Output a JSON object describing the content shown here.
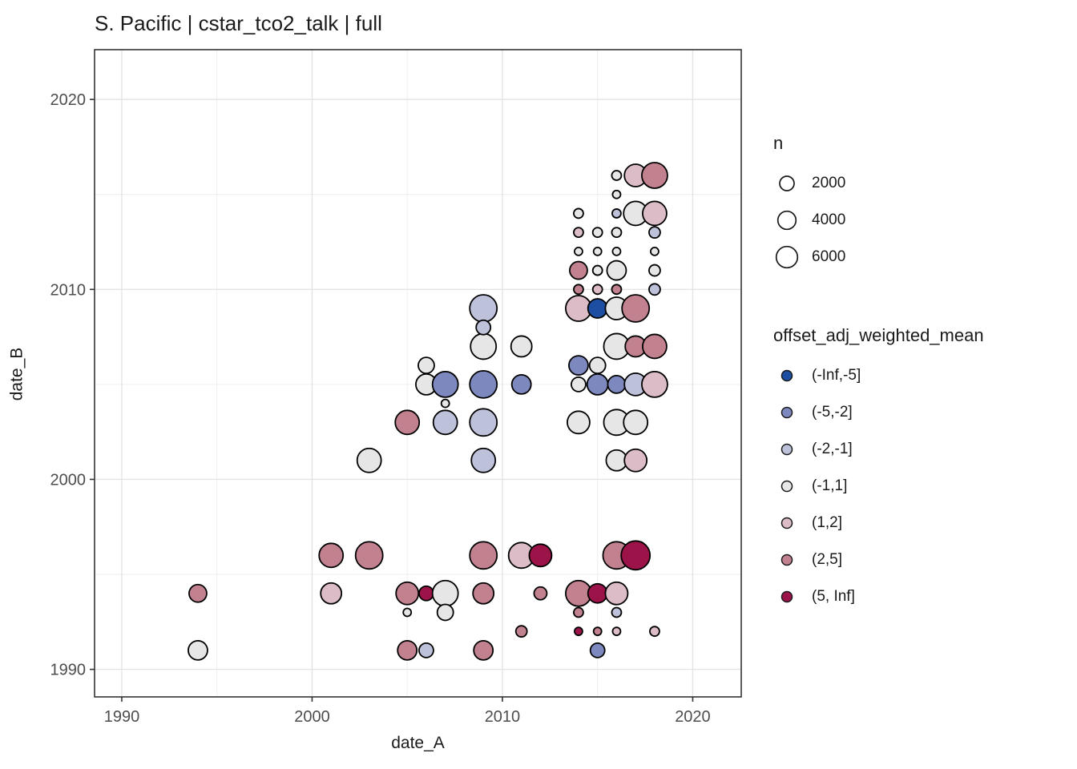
{
  "title": "S. Pacific | cstar_tco2_talk | full",
  "chart_data": {
    "type": "scatter",
    "title": "S. Pacific | cstar_tco2_talk | full",
    "xlabel": "date_A",
    "ylabel": "date_B",
    "xlim": [
      1988.57,
      2022.55
    ],
    "ylim": [
      1988.55,
      2022.62
    ],
    "x_ticks": [
      1990,
      2000,
      2010,
      2020
    ],
    "y_ticks": [
      1990,
      2000,
      2010,
      2020
    ],
    "x_minor_ticks": [
      1995,
      2005,
      2015
    ],
    "y_minor_ticks": [
      1995,
      2005,
      2015
    ],
    "grid": true,
    "legend_position": "right",
    "size_legend": {
      "title": "n",
      "entries": [
        {
          "n": "2000",
          "r": 9
        },
        {
          "n": "4000",
          "r": 11.3
        },
        {
          "n": "6000",
          "r": 13.3
        }
      ]
    },
    "color_legend": {
      "title": "offset_adj_weighted_mean",
      "entries": [
        {
          "label": "(-Inf,-5]",
          "color": "#1c4fa1"
        },
        {
          "label": "(-5,-2]",
          "color": "#7d88be"
        },
        {
          "label": "(-2,-1]",
          "color": "#bdc1da"
        },
        {
          "label": "(-1,1]",
          "color": "#e6e6e6"
        },
        {
          "label": "(1,2]",
          "color": "#dcbdc7"
        },
        {
          "label": "(2,5]",
          "color": "#c1818f"
        },
        {
          "label": "(5, Inf]",
          "color": "#9c1349"
        }
      ]
    },
    "points": [
      {
        "a": 2016,
        "b": 2016,
        "bin": "(-1,1]",
        "r": 6,
        "n": 420
      },
      {
        "a": 2017,
        "b": 2016,
        "bin": "(1,2]",
        "r": 14,
        "n": 7200
      },
      {
        "a": 2018,
        "b": 2016,
        "bin": "(2,5]",
        "r": 16,
        "n": 10200
      },
      {
        "a": 2016,
        "b": 2015,
        "bin": "(-1,1]",
        "r": 5,
        "n": 150
      },
      {
        "a": 2014,
        "b": 2014,
        "bin": "(-1,1]",
        "r": 6,
        "n": 420
      },
      {
        "a": 2016,
        "b": 2014,
        "bin": "(-2,-1]",
        "r": 5.5,
        "n": 270
      },
      {
        "a": 2017,
        "b": 2014,
        "bin": "(-1,1]",
        "r": 15,
        "n": 8700
      },
      {
        "a": 2018,
        "b": 2014,
        "bin": "(1,2]",
        "r": 15,
        "n": 8700
      },
      {
        "a": 2014,
        "b": 2013,
        "bin": "(1,2]",
        "r": 6,
        "n": 420
      },
      {
        "a": 2015,
        "b": 2013,
        "bin": "(-1,1]",
        "r": 6,
        "n": 420
      },
      {
        "a": 2016,
        "b": 2013,
        "bin": "(-1,1]",
        "r": 6,
        "n": 420
      },
      {
        "a": 2018,
        "b": 2013,
        "bin": "(-2,-1]",
        "r": 7,
        "n": 820
      },
      {
        "a": 2014,
        "b": 2012,
        "bin": "(-1,1]",
        "r": 5,
        "n": 150
      },
      {
        "a": 2015,
        "b": 2012,
        "bin": "(-1,1]",
        "r": 5,
        "n": 150
      },
      {
        "a": 2016,
        "b": 2012,
        "bin": "(-1,1]",
        "r": 5,
        "n": 150
      },
      {
        "a": 2018,
        "b": 2012,
        "bin": "(-1,1]",
        "r": 5,
        "n": 150
      },
      {
        "a": 2014,
        "b": 2011,
        "bin": "(2,5]",
        "r": 11,
        "n": 3700
      },
      {
        "a": 2015,
        "b": 2011,
        "bin": "(-1,1]",
        "r": 6,
        "n": 420
      },
      {
        "a": 2016,
        "b": 2011,
        "bin": "(-1,1]",
        "r": 12,
        "n": 4700
      },
      {
        "a": 2018,
        "b": 2011,
        "bin": "(-1,1]",
        "r": 7,
        "n": 820
      },
      {
        "a": 2014,
        "b": 2010,
        "bin": "(2,5]",
        "r": 6,
        "n": 420
      },
      {
        "a": 2015,
        "b": 2010,
        "bin": "(1,2]",
        "r": 6,
        "n": 420
      },
      {
        "a": 2016,
        "b": 2010,
        "bin": "(2,5]",
        "r": 6,
        "n": 420
      },
      {
        "a": 2018,
        "b": 2010,
        "bin": "(-2,-1]",
        "r": 7,
        "n": 820
      },
      {
        "a": 2014,
        "b": 2009,
        "bin": "(1,2]",
        "r": 16,
        "n": 10200
      },
      {
        "a": 2015,
        "b": 2009,
        "bin": "(-Inf,-5]",
        "r": 12,
        "n": 4700
      },
      {
        "a": 2016,
        "b": 2009,
        "bin": "(-1,1]",
        "r": 14,
        "n": 7200
      },
      {
        "a": 2017,
        "b": 2009,
        "bin": "(2,5]",
        "r": 17,
        "n": 11900
      },
      {
        "a": 2016,
        "b": 2007,
        "bin": "(-1,1]",
        "r": 16,
        "n": 10200
      },
      {
        "a": 2017,
        "b": 2007,
        "bin": "(2,5]",
        "r": 13,
        "n": 5900
      },
      {
        "a": 2018,
        "b": 2007,
        "bin": "(2,5]",
        "r": 15,
        "n": 8700
      },
      {
        "a": 2014,
        "b": 2006,
        "bin": "(-5,-2]",
        "r": 12,
        "n": 4700
      },
      {
        "a": 2015,
        "b": 2006,
        "bin": "(-1,1]",
        "r": 10,
        "n": 2800
      },
      {
        "a": 2014,
        "b": 2005,
        "bin": "(-1,1]",
        "r": 9,
        "n": 2000
      },
      {
        "a": 2015,
        "b": 2005,
        "bin": "(-5,-2]",
        "r": 13,
        "n": 5900
      },
      {
        "a": 2016,
        "b": 2005,
        "bin": "(-5,-2]",
        "r": 11,
        "n": 3700
      },
      {
        "a": 2017,
        "b": 2005,
        "bin": "(-2,-1]",
        "r": 14,
        "n": 7200
      },
      {
        "a": 2018,
        "b": 2005,
        "bin": "(1,2]",
        "r": 16,
        "n": 10200
      },
      {
        "a": 2014,
        "b": 2003,
        "bin": "(-1,1]",
        "r": 14,
        "n": 7200
      },
      {
        "a": 2016,
        "b": 2003,
        "bin": "(-1,1]",
        "r": 16,
        "n": 10200
      },
      {
        "a": 2017,
        "b": 2003,
        "bin": "(-1,1]",
        "r": 15,
        "n": 8700
      },
      {
        "a": 2016,
        "b": 2001,
        "bin": "(-1,1]",
        "r": 13,
        "n": 5900
      },
      {
        "a": 2017,
        "b": 2001,
        "bin": "(1,2]",
        "r": 14,
        "n": 7200
      },
      {
        "a": 2009,
        "b": 2009,
        "bin": "(-2,-1]",
        "r": 17,
        "n": 11900
      },
      {
        "a": 2009,
        "b": 2008,
        "bin": "(-2,-1]",
        "r": 9,
        "n": 2000
      },
      {
        "a": 2009,
        "b": 2007,
        "bin": "(-1,1]",
        "r": 16,
        "n": 10200
      },
      {
        "a": 2011,
        "b": 2007,
        "bin": "(-1,1]",
        "r": 13,
        "n": 5900
      },
      {
        "a": 2006,
        "b": 2006,
        "bin": "(-1,1]",
        "r": 10,
        "n": 2800
      },
      {
        "a": 2006,
        "b": 2005,
        "bin": "(-1,1]",
        "r": 13,
        "n": 5900
      },
      {
        "a": 2007,
        "b": 2005,
        "bin": "(-5,-2]",
        "r": 16,
        "n": 10200
      },
      {
        "a": 2009,
        "b": 2005,
        "bin": "(-5,-2]",
        "r": 17,
        "n": 11900
      },
      {
        "a": 2011,
        "b": 2005,
        "bin": "(-5,-2]",
        "r": 12,
        "n": 4700
      },
      {
        "a": 2007,
        "b": 2004,
        "bin": "(-1,1]",
        "r": 5,
        "n": 150
      },
      {
        "a": 2005,
        "b": 2003,
        "bin": "(2,5]",
        "r": 15,
        "n": 8700
      },
      {
        "a": 2007,
        "b": 2003,
        "bin": "(-2,-1]",
        "r": 15,
        "n": 8700
      },
      {
        "a": 2009,
        "b": 2003,
        "bin": "(-2,-1]",
        "r": 17,
        "n": 11900
      },
      {
        "a": 2003,
        "b": 2001,
        "bin": "(-1,1]",
        "r": 15,
        "n": 8700
      },
      {
        "a": 2009,
        "b": 2001,
        "bin": "(-2,-1]",
        "r": 15,
        "n": 8700
      },
      {
        "a": 1994,
        "b": 1994,
        "bin": "(2,5]",
        "r": 11,
        "n": 3700
      },
      {
        "a": 1994,
        "b": 1991,
        "bin": "(-1,1]",
        "r": 12,
        "n": 4700
      },
      {
        "a": 2001,
        "b": 1996,
        "bin": "(2,5]",
        "r": 15,
        "n": 8700
      },
      {
        "a": 2003,
        "b": 1996,
        "bin": "(2,5]",
        "r": 17,
        "n": 11900
      },
      {
        "a": 2001,
        "b": 1994,
        "bin": "(1,2]",
        "r": 13,
        "n": 5900
      },
      {
        "a": 2009,
        "b": 1996,
        "bin": "(2,5]",
        "r": 17,
        "n": 11900
      },
      {
        "a": 2011,
        "b": 1996,
        "bin": "(1,2]",
        "r": 16,
        "n": 10200
      },
      {
        "a": 2012,
        "b": 1996,
        "bin": "(5, Inf]",
        "r": 14,
        "n": 7200
      },
      {
        "a": 2016,
        "b": 1996,
        "bin": "(2,5]",
        "r": 17,
        "n": 11900
      },
      {
        "a": 2017,
        "b": 1996,
        "bin": "(5, Inf]",
        "r": 18,
        "n": 13700
      },
      {
        "a": 2005,
        "b": 1994,
        "bin": "(2,5]",
        "r": 14,
        "n": 7200
      },
      {
        "a": 2006,
        "b": 1994,
        "bin": "(5, Inf]",
        "r": 9,
        "n": 2000
      },
      {
        "a": 2007,
        "b": 1994,
        "bin": "(-1,1]",
        "r": 16,
        "n": 10200
      },
      {
        "a": 2009,
        "b": 1994,
        "bin": "(2,5]",
        "r": 13,
        "n": 5900
      },
      {
        "a": 2012,
        "b": 1994,
        "bin": "(2,5]",
        "r": 8,
        "n": 1350
      },
      {
        "a": 2014,
        "b": 1994,
        "bin": "(2,5]",
        "r": 16,
        "n": 10200
      },
      {
        "a": 2015,
        "b": 1994,
        "bin": "(5, Inf]",
        "r": 12,
        "n": 4700
      },
      {
        "a": 2016,
        "b": 1994,
        "bin": "(1,2]",
        "r": 14,
        "n": 7200
      },
      {
        "a": 2005,
        "b": 1993,
        "bin": "(-1,1]",
        "r": 5,
        "n": 150
      },
      {
        "a": 2007,
        "b": 1993,
        "bin": "(-1,1]",
        "r": 10,
        "n": 2800
      },
      {
        "a": 2014,
        "b": 1993,
        "bin": "(2,5]",
        "r": 6,
        "n": 420
      },
      {
        "a": 2016,
        "b": 1993,
        "bin": "(-2,-1]",
        "r": 6,
        "n": 420
      },
      {
        "a": 2011,
        "b": 1992,
        "bin": "(2,5]",
        "r": 7,
        "n": 820
      },
      {
        "a": 2014,
        "b": 1992,
        "bin": "(5, Inf]",
        "r": 5,
        "n": 150
      },
      {
        "a": 2015,
        "b": 1992,
        "bin": "(2,5]",
        "r": 5,
        "n": 150
      },
      {
        "a": 2016,
        "b": 1992,
        "bin": "(1,2]",
        "r": 5,
        "n": 150
      },
      {
        "a": 2018,
        "b": 1992,
        "bin": "(1,2]",
        "r": 6,
        "n": 420
      },
      {
        "a": 2005,
        "b": 1991,
        "bin": "(2,5]",
        "r": 12,
        "n": 4700
      },
      {
        "a": 2006,
        "b": 1991,
        "bin": "(-2,-1]",
        "r": 9,
        "n": 2000
      },
      {
        "a": 2009,
        "b": 1991,
        "bin": "(2,5]",
        "r": 12,
        "n": 4700
      },
      {
        "a": 2015,
        "b": 1991,
        "bin": "(-5,-2]",
        "r": 9,
        "n": 2000
      }
    ]
  },
  "style": {
    "grid_major_color": "#e4e4e4",
    "grid_minor_color": "#efefef",
    "panel_border_color": "#333333",
    "tick_label_color": "#4d4d4d",
    "point_stroke_color": "#000000"
  }
}
